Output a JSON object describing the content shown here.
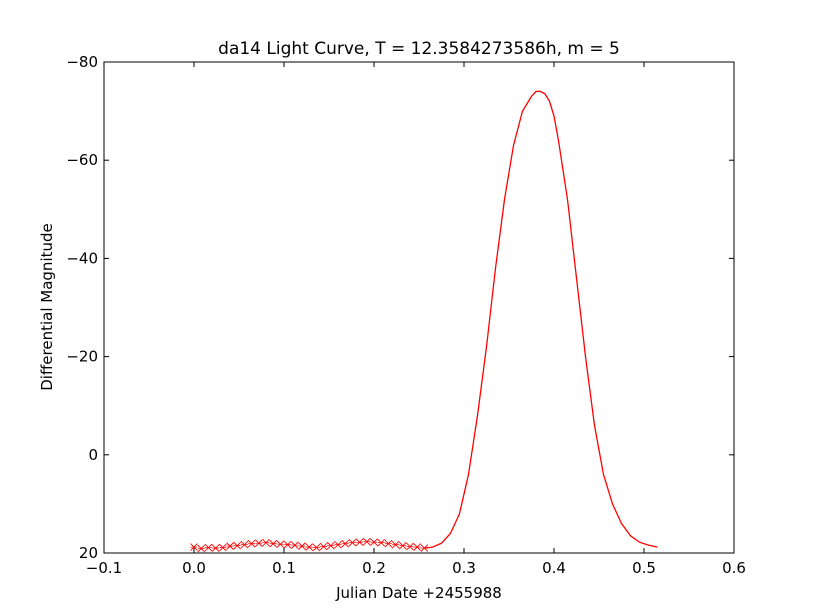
{
  "chart_data": {
    "type": "line",
    "title": "da14 Light Curve,  T = 12.3584273586h, m = 5",
    "xlabel": "Julian Date +2455988",
    "ylabel": "Differential Magnitude",
    "xlim": [
      -0.1,
      0.6
    ],
    "ylim": [
      20,
      -80
    ],
    "y_inverted": true,
    "grid": false,
    "color": "#ff0000",
    "x_ticks": [
      -0.1,
      0.0,
      0.1,
      0.2,
      0.3,
      0.4,
      0.5,
      0.6
    ],
    "x_tick_labels": [
      "−0.1",
      "0.0",
      "0.1",
      "0.2",
      "0.3",
      "0.4",
      "0.5",
      "0.6"
    ],
    "y_ticks": [
      -80,
      -60,
      -40,
      -20,
      0,
      20
    ],
    "y_tick_labels": [
      "−80",
      "−60",
      "−40",
      "−20",
      "0",
      "20"
    ],
    "series": [
      {
        "style": "markers",
        "marker": "x",
        "x": [
          0.0,
          0.008,
          0.016,
          0.024,
          0.032,
          0.04,
          0.048,
          0.056,
          0.064,
          0.072,
          0.08,
          0.088,
          0.096,
          0.104,
          0.112,
          0.12,
          0.128,
          0.136,
          0.144,
          0.152,
          0.16,
          0.168,
          0.176,
          0.184,
          0.192,
          0.2,
          0.208,
          0.216,
          0.224,
          0.232,
          0.24,
          0.248,
          0.256
        ],
        "y": [
          18.8,
          19.1,
          18.9,
          19.0,
          18.9,
          18.6,
          18.5,
          18.3,
          18.1,
          18.0,
          17.9,
          18.1,
          18.2,
          18.3,
          18.4,
          18.6,
          18.8,
          18.9,
          18.7,
          18.5,
          18.3,
          18.1,
          17.9,
          17.8,
          17.7,
          17.8,
          17.9,
          18.1,
          18.3,
          18.5,
          18.7,
          18.8,
          19.0
        ]
      },
      {
        "style": "line",
        "x": [
          0.255,
          0.265,
          0.275,
          0.285,
          0.295,
          0.305,
          0.315,
          0.325,
          0.335,
          0.345,
          0.355,
          0.365,
          0.375,
          0.38,
          0.385,
          0.39,
          0.395,
          0.4,
          0.405,
          0.415,
          0.425,
          0.435,
          0.445,
          0.455,
          0.465,
          0.475,
          0.485,
          0.495,
          0.505,
          0.515
        ],
        "y": [
          19.0,
          18.8,
          18.0,
          16.0,
          12.0,
          4.0,
          -8.0,
          -22.0,
          -38.0,
          -52.0,
          -63.0,
          -70.0,
          -73.0,
          -74.0,
          -74.0,
          -73.5,
          -72.0,
          -69.0,
          -64.0,
          -52.0,
          -36.0,
          -20.0,
          -6.0,
          4.0,
          10.0,
          14.0,
          16.5,
          17.8,
          18.4,
          18.8
        ]
      }
    ]
  }
}
